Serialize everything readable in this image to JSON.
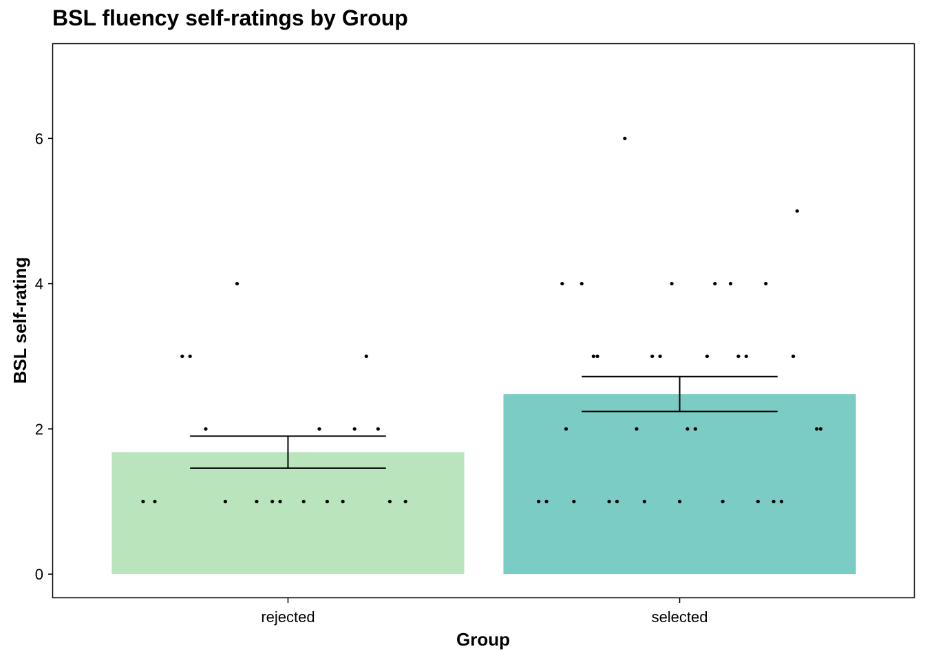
{
  "chart_data": {
    "type": "bar",
    "title": "BSL fluency self-ratings by Group",
    "xlabel": "Group",
    "ylabel": "BSL self-rating",
    "categories": [
      "rejected",
      "selected"
    ],
    "values": [
      1.68,
      2.48
    ],
    "error_bars": [
      {
        "low": 1.46,
        "high": 1.9
      },
      {
        "low": 2.24,
        "high": 2.72
      }
    ],
    "bar_colors": [
      "#bae4bc",
      "#7bccc4"
    ],
    "ylim": [
      -0.33,
      7.3
    ],
    "yticks": [
      0,
      2,
      4,
      6
    ],
    "grid": false,
    "points": [
      {
        "group": 0,
        "y": 4,
        "jitter": -0.13
      },
      {
        "group": 0,
        "y": 3,
        "jitter": -0.27
      },
      {
        "group": 0,
        "y": 3,
        "jitter": -0.25
      },
      {
        "group": 0,
        "y": 3,
        "jitter": 0.2
      },
      {
        "group": 0,
        "y": 2,
        "jitter": -0.21
      },
      {
        "group": 0,
        "y": 2,
        "jitter": 0.08
      },
      {
        "group": 0,
        "y": 2,
        "jitter": 0.17
      },
      {
        "group": 0,
        "y": 2,
        "jitter": 0.23
      },
      {
        "group": 0,
        "y": 1,
        "jitter": -0.37
      },
      {
        "group": 0,
        "y": 1,
        "jitter": -0.34
      },
      {
        "group": 0,
        "y": 1,
        "jitter": -0.16
      },
      {
        "group": 0,
        "y": 1,
        "jitter": -0.08
      },
      {
        "group": 0,
        "y": 1,
        "jitter": -0.04
      },
      {
        "group": 0,
        "y": 1,
        "jitter": -0.02
      },
      {
        "group": 0,
        "y": 1,
        "jitter": 0.04
      },
      {
        "group": 0,
        "y": 1,
        "jitter": 0.1
      },
      {
        "group": 0,
        "y": 1,
        "jitter": 0.14
      },
      {
        "group": 0,
        "y": 1,
        "jitter": 0.26
      },
      {
        "group": 0,
        "y": 1,
        "jitter": 0.3
      },
      {
        "group": 1,
        "y": 6,
        "jitter": -0.14
      },
      {
        "group": 1,
        "y": 5,
        "jitter": 0.3
      },
      {
        "group": 1,
        "y": 4,
        "jitter": -0.3
      },
      {
        "group": 1,
        "y": 4,
        "jitter": -0.25
      },
      {
        "group": 1,
        "y": 4,
        "jitter": -0.02
      },
      {
        "group": 1,
        "y": 4,
        "jitter": 0.09
      },
      {
        "group": 1,
        "y": 4,
        "jitter": 0.13
      },
      {
        "group": 1,
        "y": 4,
        "jitter": 0.22
      },
      {
        "group": 1,
        "y": 3,
        "jitter": -0.22
      },
      {
        "group": 1,
        "y": 3,
        "jitter": -0.21
      },
      {
        "group": 1,
        "y": 3,
        "jitter": -0.07
      },
      {
        "group": 1,
        "y": 3,
        "jitter": -0.05
      },
      {
        "group": 1,
        "y": 3,
        "jitter": 0.07
      },
      {
        "group": 1,
        "y": 3,
        "jitter": 0.15
      },
      {
        "group": 1,
        "y": 3,
        "jitter": 0.17
      },
      {
        "group": 1,
        "y": 3,
        "jitter": 0.29
      },
      {
        "group": 1,
        "y": 2,
        "jitter": -0.29
      },
      {
        "group": 1,
        "y": 2,
        "jitter": -0.11
      },
      {
        "group": 1,
        "y": 2,
        "jitter": 0.02
      },
      {
        "group": 1,
        "y": 2,
        "jitter": 0.04
      },
      {
        "group": 1,
        "y": 2,
        "jitter": 0.35
      },
      {
        "group": 1,
        "y": 2,
        "jitter": 0.36
      },
      {
        "group": 1,
        "y": 1,
        "jitter": -0.36
      },
      {
        "group": 1,
        "y": 1,
        "jitter": -0.34
      },
      {
        "group": 1,
        "y": 1,
        "jitter": -0.27
      },
      {
        "group": 1,
        "y": 1,
        "jitter": -0.18
      },
      {
        "group": 1,
        "y": 1,
        "jitter": -0.16
      },
      {
        "group": 1,
        "y": 1,
        "jitter": -0.09
      },
      {
        "group": 1,
        "y": 1,
        "jitter": 0.0
      },
      {
        "group": 1,
        "y": 1,
        "jitter": 0.11
      },
      {
        "group": 1,
        "y": 1,
        "jitter": 0.2
      },
      {
        "group": 1,
        "y": 1,
        "jitter": 0.24
      },
      {
        "group": 1,
        "y": 1,
        "jitter": 0.26
      }
    ]
  }
}
